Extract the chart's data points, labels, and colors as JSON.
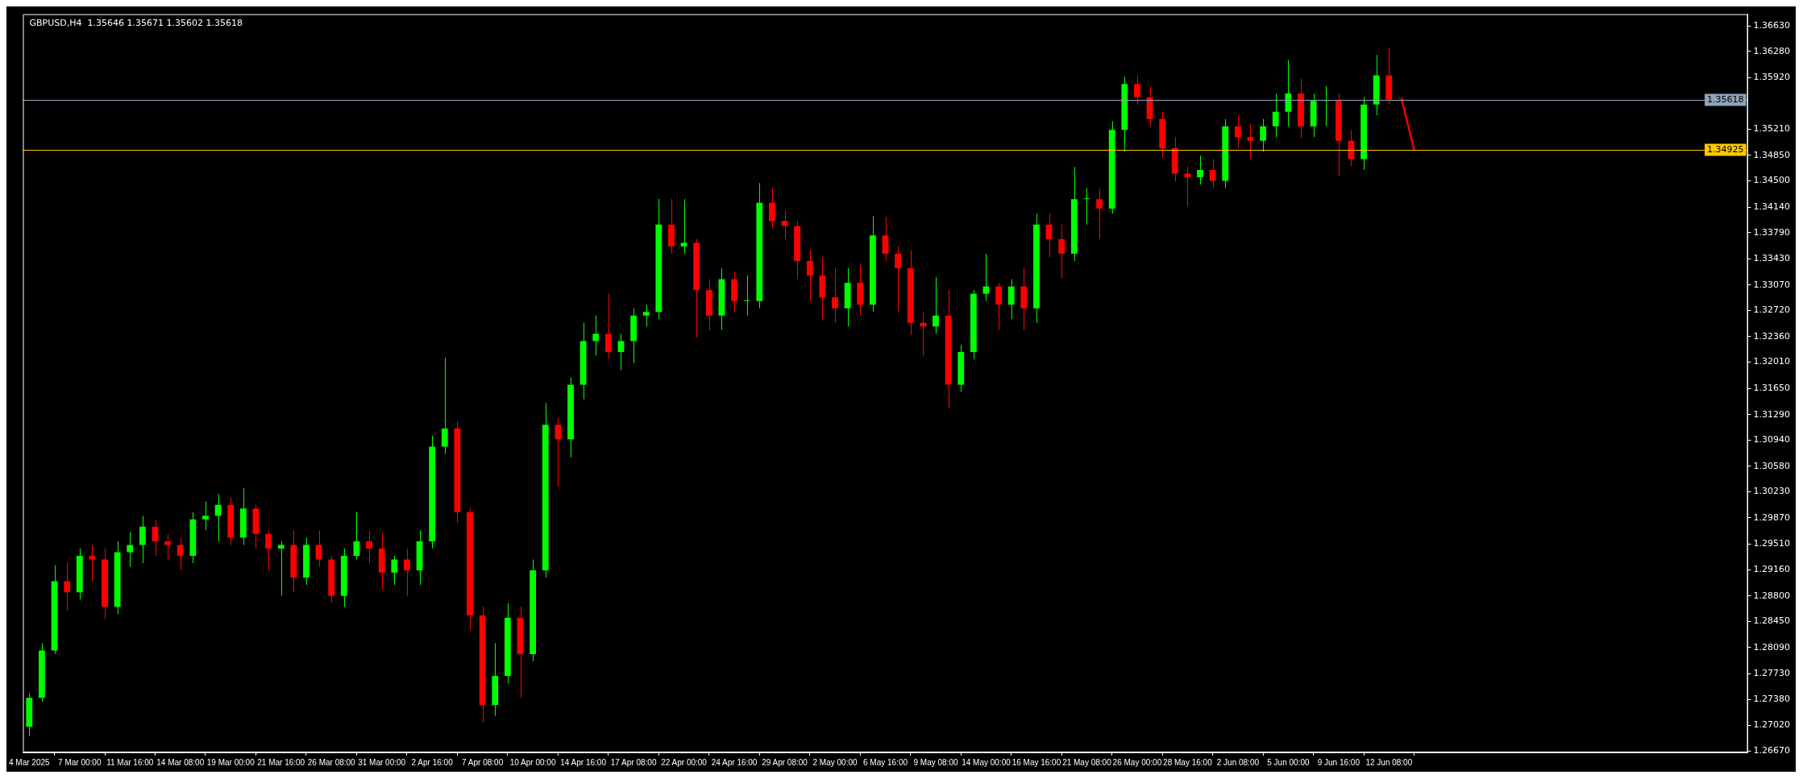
{
  "chart_data": {
    "type": "candlestick",
    "title": "GBPUSD,H4  1.35646 1.35671 1.35602 1.35618",
    "categories": [
      "4 Mar 2025",
      null,
      null,
      null,
      "7 Mar 00:00",
      null,
      null,
      null,
      "11 Mar 16:00",
      null,
      null,
      null,
      "14 Mar 08:00",
      null,
      null,
      null,
      "19 Mar 00:00",
      null,
      null,
      null,
      "21 Mar 16:00",
      null,
      null,
      null,
      "26 Mar 08:00",
      null,
      null,
      null,
      "31 Mar 00:00",
      null,
      null,
      null,
      "2 Apr 16:00",
      null,
      null,
      null,
      "7 Apr 08:00",
      null,
      null,
      null,
      "10 Apr 00:00",
      null,
      null,
      null,
      "14 Apr 16:00",
      null,
      null,
      null,
      "17 Apr 08:00",
      null,
      null,
      null,
      "22 Apr 00:00",
      null,
      null,
      null,
      "24 Apr 16:00",
      null,
      null,
      null,
      "29 Apr 08:00",
      null,
      null,
      null,
      "2 May 00:00",
      null,
      null,
      null,
      "6 May 16:00",
      null,
      null,
      null,
      "9 May 08:00",
      null,
      null,
      null,
      "14 May 00:00",
      null,
      null,
      null,
      "16 May 16:00",
      null,
      null,
      null,
      "21 May 08:00",
      null,
      null,
      null,
      "26 May 00:00",
      null,
      null,
      null,
      "28 May 16:00",
      null,
      null,
      null,
      "2 Jun 08:00",
      null,
      null,
      null,
      "5 Jun 00:00",
      null,
      null,
      null,
      "9 Jun 16:00",
      null,
      null,
      null,
      "12 Jun 08:00",
      null,
      null,
      null,
      null,
      null,
      null,
      null,
      null,
      null,
      null,
      null,
      null,
      null,
      null,
      null,
      null,
      null,
      null,
      null,
      null,
      null,
      null,
      null,
      null,
      null,
      null,
      null,
      null
    ],
    "ohlc": [
      [
        1.27,
        1.2746,
        1.2687,
        1.274
      ],
      [
        1.274,
        1.2815,
        1.2735,
        1.2805
      ],
      [
        1.2805,
        1.2922,
        1.28,
        1.29
      ],
      [
        1.29,
        1.2925,
        1.286,
        1.2885
      ],
      [
        1.2885,
        1.2945,
        1.2875,
        1.2935
      ],
      [
        1.2935,
        1.295,
        1.29,
        1.293
      ],
      [
        1.293,
        1.2945,
        1.2848,
        1.2865
      ],
      [
        1.2865,
        1.2955,
        1.2855,
        1.294
      ],
      [
        1.294,
        1.2968,
        1.292,
        1.295
      ],
      [
        1.295,
        1.299,
        1.2925,
        1.2975
      ],
      [
        1.2975,
        1.2985,
        1.2935,
        1.2955
      ],
      [
        1.2955,
        1.2965,
        1.293,
        1.295
      ],
      [
        1.295,
        1.296,
        1.2915,
        1.2935
      ],
      [
        1.2935,
        1.2995,
        1.2925,
        1.2985
      ],
      [
        1.2985,
        1.301,
        1.297,
        1.299
      ],
      [
        1.299,
        1.302,
        1.2955,
        1.3005
      ],
      [
        1.3005,
        1.3015,
        1.295,
        1.296
      ],
      [
        1.296,
        1.3028,
        1.295,
        1.3
      ],
      [
        1.3,
        1.3005,
        1.2945,
        1.2965
      ],
      [
        1.2965,
        1.297,
        1.2915,
        1.2945
      ],
      [
        1.2945,
        1.2955,
        1.288,
        1.295
      ],
      [
        1.295,
        1.297,
        1.2885,
        1.2905
      ],
      [
        1.2905,
        1.296,
        1.2895,
        1.295
      ],
      [
        1.295,
        1.297,
        1.292,
        1.293
      ],
      [
        1.293,
        1.2935,
        1.287,
        1.288
      ],
      [
        1.288,
        1.2945,
        1.2865,
        1.2935
      ],
      [
        1.2935,
        1.2995,
        1.293,
        1.2955
      ],
      [
        1.2955,
        1.297,
        1.2925,
        1.2945
      ],
      [
        1.2945,
        1.2967,
        1.2888,
        1.2912
      ],
      [
        1.2912,
        1.2935,
        1.2895,
        1.293
      ],
      [
        1.293,
        1.2945,
        1.288,
        1.2915
      ],
      [
        1.2915,
        1.297,
        1.2895,
        1.2955
      ],
      [
        1.2955,
        1.31,
        1.2945,
        1.3085
      ],
      [
        1.3085,
        1.3207,
        1.3075,
        1.311
      ],
      [
        1.311,
        1.312,
        1.298,
        1.2995
      ],
      [
        1.2995,
        1.3,
        1.2833,
        1.2853
      ],
      [
        1.2853,
        1.2865,
        1.2706,
        1.273
      ],
      [
        1.273,
        1.2815,
        1.2715,
        1.277
      ],
      [
        1.277,
        1.287,
        1.276,
        1.285
      ],
      [
        1.285,
        1.2865,
        1.274,
        1.28
      ],
      [
        1.28,
        1.293,
        1.279,
        1.2915
      ],
      [
        1.2915,
        1.3145,
        1.2905,
        1.3115
      ],
      [
        1.3115,
        1.3125,
        1.303,
        1.3095
      ],
      [
        1.3095,
        1.318,
        1.307,
        1.317
      ],
      [
        1.317,
        1.3255,
        1.315,
        1.323
      ],
      [
        1.323,
        1.3265,
        1.321,
        1.324
      ],
      [
        1.324,
        1.3295,
        1.3205,
        1.3215
      ],
      [
        1.3215,
        1.324,
        1.319,
        1.323
      ],
      [
        1.323,
        1.3275,
        1.32,
        1.3265
      ],
      [
        1.3265,
        1.328,
        1.325,
        1.327
      ],
      [
        1.327,
        1.3425,
        1.326,
        1.339
      ],
      [
        1.339,
        1.3425,
        1.335,
        1.336
      ],
      [
        1.336,
        1.3425,
        1.335,
        1.3365
      ],
      [
        1.3365,
        1.337,
        1.3235,
        1.33
      ],
      [
        1.33,
        1.3315,
        1.3245,
        1.3265
      ],
      [
        1.3265,
        1.333,
        1.3245,
        1.3315
      ],
      [
        1.3315,
        1.3325,
        1.327,
        1.3285
      ],
      [
        1.3285,
        1.332,
        1.3265,
        1.3285
      ],
      [
        1.3285,
        1.3447,
        1.3275,
        1.342
      ],
      [
        1.342,
        1.344,
        1.3385,
        1.3395
      ],
      [
        1.3395,
        1.341,
        1.337,
        1.3388
      ],
      [
        1.3388,
        1.3395,
        1.3315,
        1.334
      ],
      [
        1.334,
        1.3355,
        1.3285,
        1.332
      ],
      [
        1.332,
        1.3345,
        1.326,
        1.329
      ],
      [
        1.329,
        1.333,
        1.3255,
        1.3275
      ],
      [
        1.3275,
        1.333,
        1.325,
        1.331
      ],
      [
        1.331,
        1.3335,
        1.3265,
        1.328
      ],
      [
        1.328,
        1.3402,
        1.327,
        1.3375
      ],
      [
        1.3375,
        1.34,
        1.334,
        1.335
      ],
      [
        1.335,
        1.336,
        1.327,
        1.333
      ],
      [
        1.333,
        1.3355,
        1.3238,
        1.3255
      ],
      [
        1.3255,
        1.327,
        1.321,
        1.325
      ],
      [
        1.325,
        1.3318,
        1.324,
        1.3265
      ],
      [
        1.3265,
        1.33,
        1.3138,
        1.317
      ],
      [
        1.317,
        1.3225,
        1.316,
        1.3215
      ],
      [
        1.3215,
        1.33,
        1.3205,
        1.3295
      ],
      [
        1.3295,
        1.335,
        1.3285,
        1.3305
      ],
      [
        1.3305,
        1.331,
        1.3245,
        1.328
      ],
      [
        1.328,
        1.3315,
        1.326,
        1.3305
      ],
      [
        1.3305,
        1.333,
        1.3245,
        1.3275
      ],
      [
        1.3275,
        1.3405,
        1.3255,
        1.339
      ],
      [
        1.339,
        1.3405,
        1.3345,
        1.337
      ],
      [
        1.337,
        1.339,
        1.3316,
        1.335
      ],
      [
        1.335,
        1.3469,
        1.334,
        1.3425
      ],
      [
        1.3425,
        1.344,
        1.339,
        1.3425
      ],
      [
        1.3425,
        1.344,
        1.337,
        1.3412
      ],
      [
        1.3412,
        1.3532,
        1.3405,
        1.352
      ],
      [
        1.352,
        1.3593,
        1.349,
        1.3583
      ],
      [
        1.3583,
        1.3595,
        1.3555,
        1.3565
      ],
      [
        1.3565,
        1.358,
        1.3525,
        1.3535
      ],
      [
        1.3535,
        1.3545,
        1.3482,
        1.3495
      ],
      [
        1.3495,
        1.351,
        1.3449,
        1.346
      ],
      [
        1.346,
        1.347,
        1.3415,
        1.3455
      ],
      [
        1.3455,
        1.3485,
        1.3445,
        1.3465
      ],
      [
        1.3465,
        1.348,
        1.344,
        1.345
      ],
      [
        1.345,
        1.3535,
        1.344,
        1.3525
      ],
      [
        1.3525,
        1.354,
        1.3495,
        1.351
      ],
      [
        1.351,
        1.3528,
        1.348,
        1.3505
      ],
      [
        1.3505,
        1.3535,
        1.349,
        1.3525
      ],
      [
        1.3525,
        1.357,
        1.351,
        1.3545
      ],
      [
        1.3545,
        1.3616,
        1.3525,
        1.357
      ],
      [
        1.357,
        1.359,
        1.3508,
        1.3525
      ],
      [
        1.3525,
        1.357,
        1.351,
        1.356
      ],
      [
        1.356,
        1.358,
        1.3525,
        1.356
      ],
      [
        1.356,
        1.357,
        1.3456,
        1.3505
      ],
      [
        1.3505,
        1.352,
        1.347,
        1.348
      ],
      [
        1.348,
        1.3565,
        1.3465,
        1.3555
      ],
      [
        1.3555,
        1.3623,
        1.354,
        1.3595
      ],
      [
        1.3595,
        1.3633,
        1.3555,
        1.35618
      ],
      null,
      null,
      null,
      null,
      null,
      null,
      null,
      null,
      null,
      null,
      null,
      null,
      null,
      null,
      null,
      null,
      null,
      null,
      null,
      null,
      null,
      null,
      null,
      null,
      null,
      null,
      null,
      null
    ],
    "colors": [
      "#00ff00",
      "#00ff00",
      "#00ff00",
      "#ff0000",
      "#00ff00",
      "#ff0000",
      "#ff0000",
      "#00ff00",
      "#00ff00",
      "#00ff00",
      "#ff0000",
      "#ff0000",
      "#ff0000",
      "#00ff00",
      "#00ff00",
      "#00ff00",
      "#ff0000",
      "#00ff00",
      "#ff0000",
      "#ff0000",
      "#00ff00",
      "#ff0000",
      "#00ff00",
      "#ff0000",
      "#ff0000",
      "#00ff00",
      "#00ff00",
      "#ff0000",
      "#ff0000",
      "#00ff00",
      "#ff0000",
      "#00ff00",
      "#00ff00",
      "#00ff00",
      "#ff0000",
      "#ff0000",
      "#ff0000",
      "#00ff00",
      "#00ff00",
      "#ff0000",
      "#00ff00",
      "#00ff00",
      "#ff0000",
      "#00ff00",
      "#00ff00",
      "#00ff00",
      "#ff0000",
      "#00ff00",
      "#00ff00",
      "#00ff00",
      "#00ff00",
      "#ff0000",
      "#00ff00",
      "#ff0000",
      "#ff0000",
      "#00ff00",
      "#ff0000",
      "#00ff00",
      "#00ff00",
      "#ff0000",
      "#ff0000",
      "#ff0000",
      "#ff0000",
      "#ff0000",
      "#ff0000",
      "#00ff00",
      "#ff0000",
      "#00ff00",
      "#ff0000",
      "#ff0000",
      "#ff0000",
      "#ff0000",
      "#00ff00",
      "#ff0000",
      "#00ff00",
      "#00ff00",
      "#00ff00",
      "#ff0000",
      "#00ff00",
      "#ff0000",
      "#00ff00",
      "#ff0000",
      "#ff0000",
      "#00ff00",
      "#00ff00",
      "#ff0000",
      "#00ff00",
      "#00ff00",
      "#ff0000",
      "#ff0000",
      "#ff0000",
      "#ff0000",
      "#ff0000",
      "#00ff00",
      "#ff0000",
      "#00ff00",
      "#ff0000",
      "#ff0000",
      "#00ff00",
      "#00ff00",
      "#00ff00",
      "#ff0000",
      "#00ff00",
      "#00ff00",
      "#ff0000",
      "#ff0000",
      "#00ff00",
      "#00ff00",
      "#ff0000",
      null,
      null,
      null,
      null,
      null,
      null,
      null,
      null,
      null,
      null,
      null,
      null,
      null,
      null,
      null,
      null,
      null,
      null,
      null,
      null,
      null,
      null,
      null,
      null,
      null,
      null,
      null,
      null
    ],
    "series": [
      {
        "type": "line",
        "color": "#ff0000",
        "values": [
          null,
          null,
          null,
          null,
          null,
          null,
          null,
          null,
          null,
          null,
          null,
          null,
          null,
          null,
          null,
          null,
          null,
          null,
          null,
          null,
          null,
          null,
          null,
          null,
          null,
          null,
          null,
          null,
          null,
          null,
          null,
          null,
          null,
          null,
          null,
          null,
          null,
          null,
          null,
          null,
          null,
          null,
          null,
          null,
          null,
          null,
          null,
          null,
          null,
          null,
          null,
          null,
          null,
          null,
          null,
          null,
          null,
          null,
          null,
          null,
          null,
          null,
          null,
          null,
          null,
          null,
          null,
          null,
          null,
          null,
          null,
          null,
          null,
          null,
          null,
          null,
          null,
          null,
          null,
          null,
          null,
          null,
          null,
          null,
          null,
          null,
          null,
          null,
          null,
          null,
          null,
          null,
          null,
          null,
          null,
          null,
          null,
          null,
          null,
          null,
          null,
          null,
          null,
          null,
          null,
          null,
          null,
          null,
          null,
          1.3563,
          1.3493,
          null,
          null,
          null,
          null,
          null,
          null,
          null,
          null,
          null,
          null,
          null,
          null,
          null,
          null,
          null,
          null,
          null,
          null,
          null,
          null,
          null,
          null,
          null,
          null,
          null,
          null
        ]
      }
    ],
    "ylim": [
      1.2665,
      1.3679
    ],
    "yticks": [
      {
        "value": 1.2667,
        "label": "1.26670"
      },
      {
        "value": 1.2702,
        "label": "1.27020"
      },
      {
        "value": 1.2738,
        "label": "1.27380"
      },
      {
        "value": 1.2773,
        "label": "1.27730"
      },
      {
        "value": 1.2809,
        "label": "1.28090"
      },
      {
        "value": 1.2845,
        "label": "1.28450"
      },
      {
        "value": 1.288,
        "label": "1.28800"
      },
      {
        "value": 1.2916,
        "label": "1.29160"
      },
      {
        "value": 1.2951,
        "label": "1.29510"
      },
      {
        "value": 1.2987,
        "label": "1.29870"
      },
      {
        "value": 1.3023,
        "label": "1.30230"
      },
      {
        "value": 1.3058,
        "label": "1.30580"
      },
      {
        "value": 1.3094,
        "label": "1.30940"
      },
      {
        "value": 1.3129,
        "label": "1.31290"
      },
      {
        "value": 1.3165,
        "label": "1.31650"
      },
      {
        "value": 1.3201,
        "label": "1.32010"
      },
      {
        "value": 1.3236,
        "label": "1.32360"
      },
      {
        "value": 1.3272,
        "label": "1.32720"
      },
      {
        "value": 1.3307,
        "label": "1.33070"
      },
      {
        "value": 1.3343,
        "label": "1.33430"
      },
      {
        "value": 1.3379,
        "label": "1.33790"
      },
      {
        "value": 1.3414,
        "label": "1.34140"
      },
      {
        "value": 1.345,
        "label": "1.34500"
      },
      {
        "value": 1.3485,
        "label": "1.34850"
      },
      {
        "value": 1.3521,
        "label": "1.35210"
      },
      {
        "value": 1.3592,
        "label": "1.35920"
      },
      {
        "value": 1.3628,
        "label": "1.36280"
      },
      {
        "value": 1.3663,
        "label": "1.36630"
      }
    ],
    "ref_lines": [
      {
        "axis": "y",
        "value": 1.35618,
        "label": "1.35618",
        "color": "#8fa3b8"
      },
      {
        "axis": "y",
        "value": 1.34925,
        "label": "1.34925",
        "color": "#ffc800"
      }
    ],
    "grid": false,
    "legend": false
  }
}
